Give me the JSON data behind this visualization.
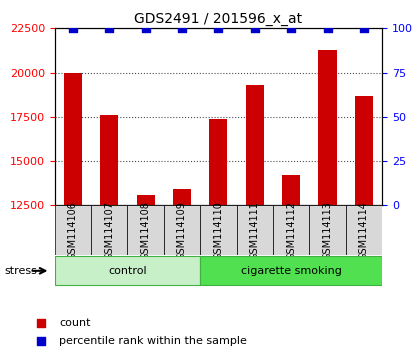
{
  "title": "GDS2491 / 201596_x_at",
  "samples": [
    "GSM114106",
    "GSM114107",
    "GSM114108",
    "GSM114109",
    "GSM114110",
    "GSM114111",
    "GSM114112",
    "GSM114113",
    "GSM114114"
  ],
  "counts": [
    20000,
    17600,
    13100,
    13400,
    17400,
    19300,
    14200,
    21300,
    18700
  ],
  "percentile_ranks": [
    100,
    100,
    100,
    100,
    100,
    100,
    100,
    100,
    100
  ],
  "groups": [
    {
      "label": "control",
      "start": 0,
      "end": 4,
      "color": "#c8f0c8"
    },
    {
      "label": "cigarette smoking",
      "start": 4,
      "end": 9,
      "color": "#50e050"
    }
  ],
  "group_label": "stress",
  "ylim_left": [
    12500,
    22500
  ],
  "ylim_right": [
    0,
    100
  ],
  "yticks_left": [
    12500,
    15000,
    17500,
    20000,
    22500
  ],
  "yticks_right": [
    0,
    25,
    50,
    75,
    100
  ],
  "bar_color": "#cc0000",
  "dot_color": "#0000cc",
  "dot_marker": "s",
  "dot_size": 40,
  "bar_width": 0.5,
  "background_color": "#ffffff",
  "plot_bg_color": "#ffffff",
  "grid_color": "#000000",
  "legend_items": [
    {
      "label": "count",
      "color": "#cc0000",
      "marker": "s"
    },
    {
      "label": "percentile rank within the sample",
      "color": "#0000cc",
      "marker": "s"
    }
  ]
}
